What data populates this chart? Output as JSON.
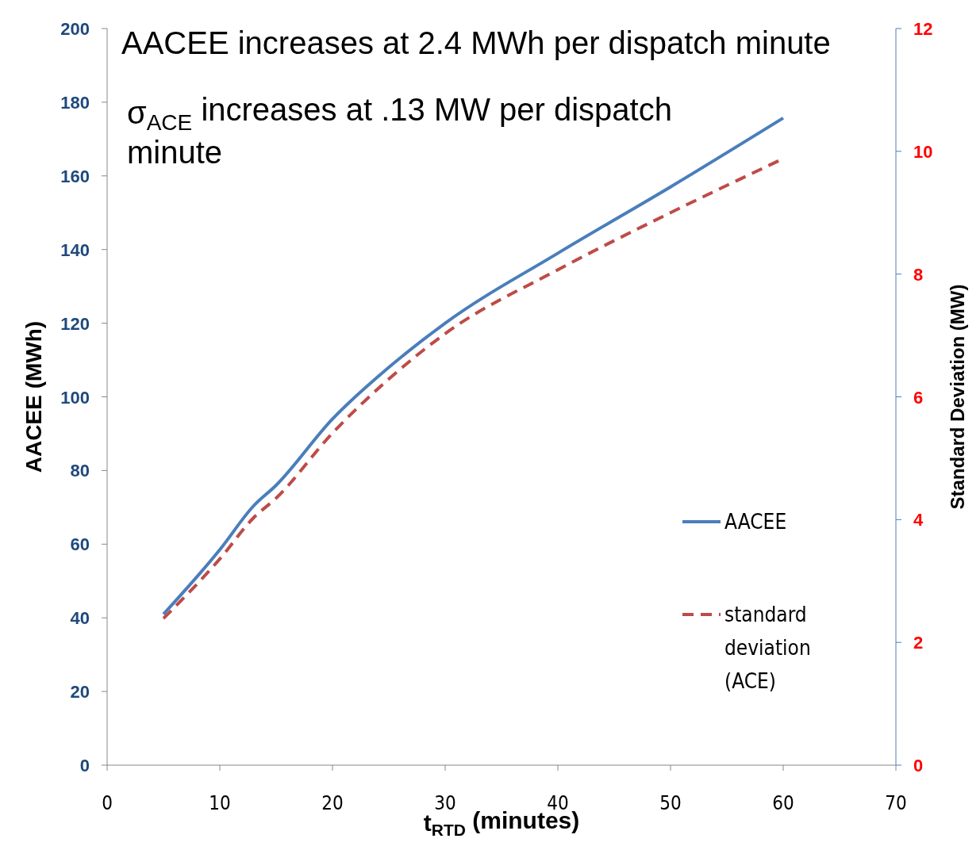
{
  "chart_data": {
    "type": "line",
    "xlabel": "t$_{RTD}$ (minutes)",
    "ylabel": "AACEE (MWh)",
    "y2label": "Standard Deviation (MW)",
    "annotations": [
      "AACEE increases at 2.4 MWh per dispatch minute",
      "σ$_{ACE}$ increases at .13 MW per dispatch minute"
    ],
    "x": [
      5,
      10,
      13,
      15,
      20,
      25,
      30,
      40,
      50,
      60
    ],
    "series": [
      {
        "name": "AACEE",
        "color": "#4a7ebb",
        "values": [
          41,
          58.5,
          70.4,
          76,
          94,
          108,
          120,
          139,
          157,
          175.7
        ],
        "line_style": "solid"
      },
      {
        "name": "standard deviation (ACE)",
        "color": "#be4b48",
        "axis": "y2",
        "values": [
          2.39,
          3.36,
          4.03,
          4.35,
          5.41,
          6.29,
          7.03,
          8.07,
          9.0,
          9.88
        ],
        "line_style": "dashed"
      }
    ],
    "xlim": [
      0,
      70
    ],
    "xticks": [
      0,
      10,
      20,
      30,
      40,
      50,
      60,
      70
    ],
    "ylim": [
      0,
      200
    ],
    "yticks": [
      0,
      20,
      40,
      60,
      80,
      100,
      120,
      140,
      160,
      180,
      200
    ],
    "y2lim": [
      0,
      12
    ],
    "y2ticks": [
      0,
      2,
      4,
      6,
      8,
      10,
      12
    ],
    "legend": "right",
    "grid": false
  }
}
